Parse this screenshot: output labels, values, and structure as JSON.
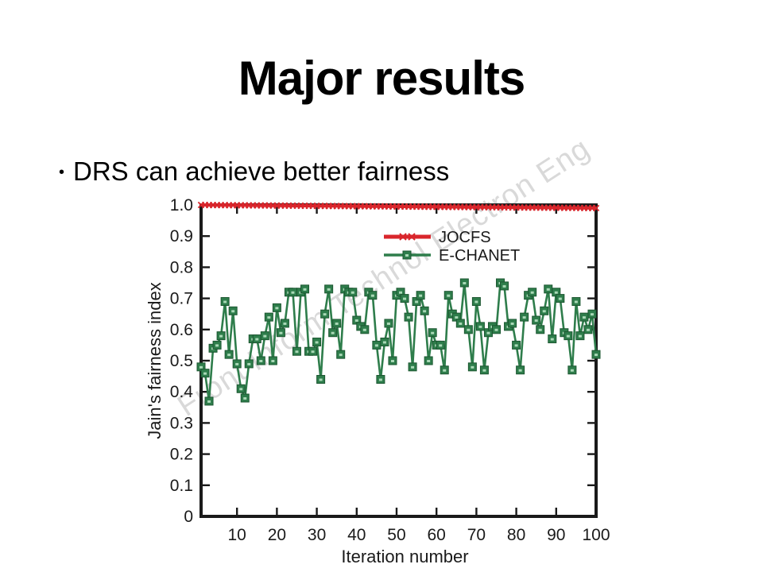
{
  "slide": {
    "title": "Major results",
    "bullet_marker": "•",
    "bullet": "DRS can achieve better fairness",
    "watermark": "Front Inform Technol Electron Eng"
  },
  "chart_data": {
    "type": "line",
    "title": "",
    "xlabel": "Iteration number",
    "ylabel": "Jain's fairness index",
    "xlim": [
      1,
      100
    ],
    "ylim": [
      0,
      1.0
    ],
    "x_ticks": [
      10,
      20,
      30,
      40,
      50,
      60,
      70,
      80,
      90,
      100
    ],
    "y_ticks": [
      0,
      0.1,
      0.2,
      0.3,
      0.4,
      0.5,
      0.6,
      0.7,
      0.8,
      0.9,
      1.0
    ],
    "y_tick_labels": [
      "0",
      "0.1",
      "0.2",
      "0.3",
      "0.4",
      "0.5",
      "0.6",
      "0.7",
      "0.8",
      "0.9",
      "1.0"
    ],
    "grid": false,
    "legend_position": "upper center, no box",
    "frame_color": "#1a1a1a",
    "tick_label_color": "#1a1a1a",
    "series": [
      {
        "name": "JOCFS",
        "color": "#d9262c",
        "marker": "x",
        "line_width": 4,
        "start_value": 1.0,
        "end_value": 0.99
      },
      {
        "name": "E-CHANET",
        "color": "#2e7d4b",
        "marker": "square",
        "marker_edge": "#1c5731",
        "marker_inner": "#a9d8b6",
        "line_width": 2.6,
        "values": [
          0.48,
          0.46,
          0.37,
          0.54,
          0.55,
          0.58,
          0.69,
          0.52,
          0.66,
          0.49,
          0.41,
          0.38,
          0.49,
          0.57,
          0.57,
          0.5,
          0.58,
          0.64,
          0.5,
          0.67,
          0.59,
          0.62,
          0.72,
          0.72,
          0.53,
          0.72,
          0.73,
          0.53,
          0.53,
          0.56,
          0.44,
          0.65,
          0.73,
          0.59,
          0.62,
          0.52,
          0.73,
          0.72,
          0.72,
          0.63,
          0.61,
          0.6,
          0.72,
          0.71,
          0.55,
          0.44,
          0.56,
          0.62,
          0.5,
          0.71,
          0.72,
          0.7,
          0.64,
          0.48,
          0.69,
          0.71,
          0.66,
          0.5,
          0.59,
          0.55,
          0.55,
          0.47,
          0.71,
          0.65,
          0.64,
          0.62,
          0.75,
          0.6,
          0.48,
          0.69,
          0.61,
          0.47,
          0.59,
          0.61,
          0.6,
          0.75,
          0.74,
          0.61,
          0.62,
          0.55,
          0.47,
          0.64,
          0.71,
          0.72,
          0.63,
          0.6,
          0.66,
          0.73,
          0.57,
          0.72,
          0.7,
          0.59,
          0.58,
          0.47,
          0.69,
          0.58,
          0.64,
          0.6,
          0.65,
          0.52
        ]
      }
    ]
  }
}
